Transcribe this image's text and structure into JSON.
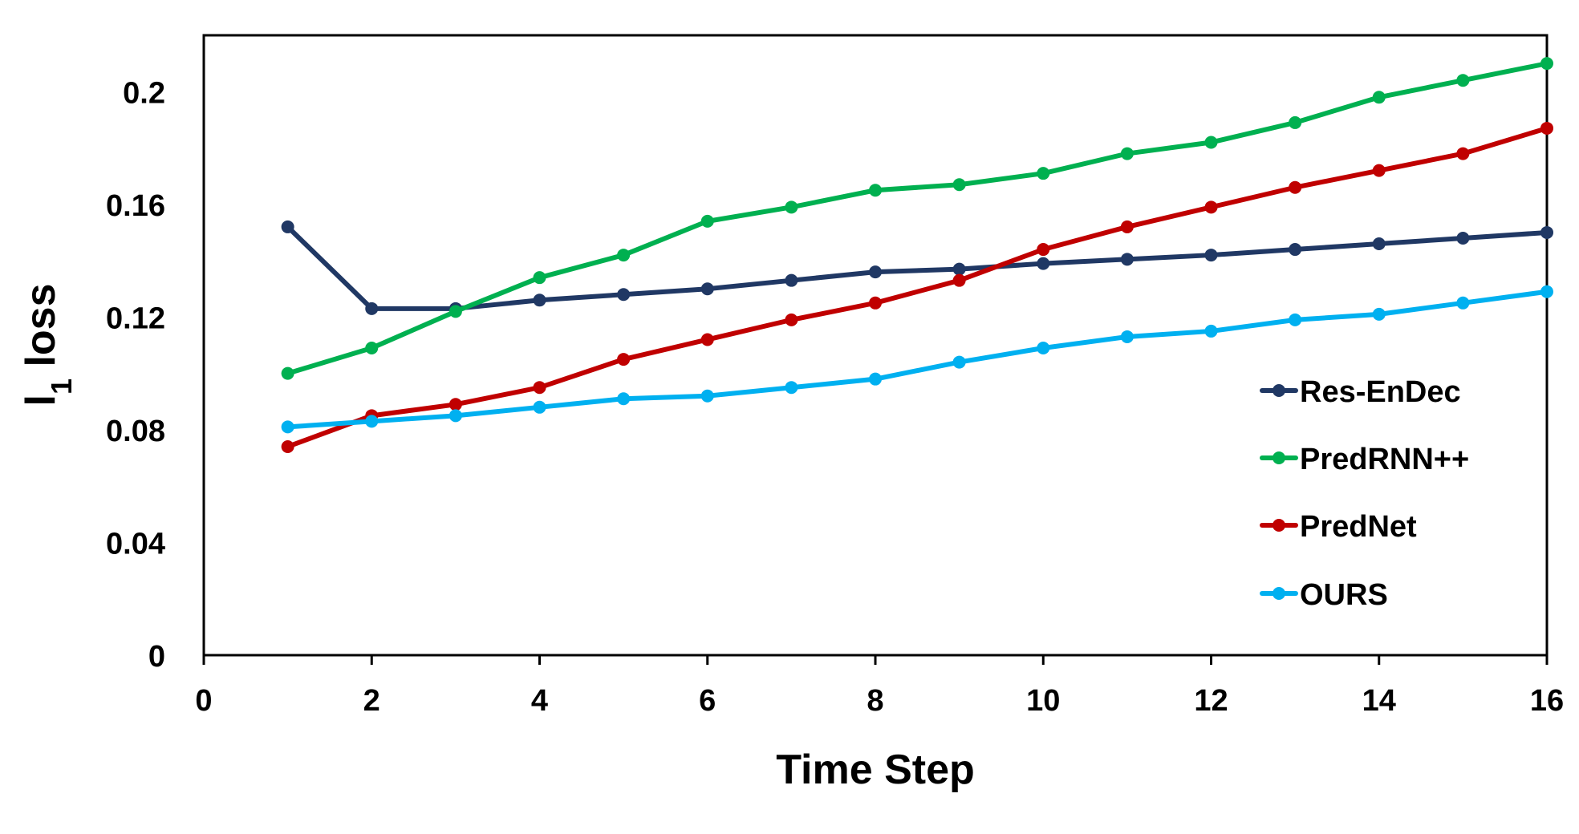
{
  "chart_data": {
    "type": "line",
    "title": "",
    "xlabel": "Time Step",
    "ylabel_main": "l",
    "ylabel_sub": "1",
    "ylabel_rest": " loss",
    "xlim": [
      0,
      16
    ],
    "ylim": [
      0,
      0.22
    ],
    "xticks": [
      0,
      2,
      4,
      6,
      8,
      10,
      12,
      14,
      16
    ],
    "yticks": [
      0,
      0.04,
      0.08,
      0.12,
      0.16,
      0.2
    ],
    "ytick_labels": [
      "0",
      "0.04",
      "0.08",
      "0.12",
      "0.16",
      "0.2"
    ],
    "grid": false,
    "legend_position": "right-middle",
    "x": [
      1,
      2,
      3,
      4,
      5,
      6,
      7,
      8,
      9,
      10,
      11,
      12,
      13,
      14,
      15,
      16
    ],
    "series": [
      {
        "name": "Res-EnDec",
        "color": "#203864",
        "values": [
          0.152,
          0.123,
          0.123,
          0.126,
          0.128,
          0.13,
          0.133,
          0.136,
          0.137,
          0.139,
          0.1405,
          0.142,
          0.144,
          0.146,
          0.148,
          0.15
        ]
      },
      {
        "name": "PredRNN++",
        "color": "#00B050",
        "values": [
          0.1,
          0.109,
          0.122,
          0.134,
          0.142,
          0.154,
          0.159,
          0.165,
          0.167,
          0.171,
          0.178,
          0.182,
          0.189,
          0.198,
          0.204,
          0.21
        ]
      },
      {
        "name": "PredNet",
        "color": "#C00000",
        "values": [
          0.074,
          0.085,
          0.089,
          0.095,
          0.105,
          0.112,
          0.119,
          0.125,
          0.133,
          0.144,
          0.152,
          0.159,
          0.166,
          0.172,
          0.178,
          0.187
        ]
      },
      {
        "name": "OURS",
        "color": "#00B0F0",
        "values": [
          0.081,
          0.083,
          0.085,
          0.088,
          0.091,
          0.092,
          0.095,
          0.098,
          0.104,
          0.109,
          0.113,
          0.115,
          0.119,
          0.121,
          0.125,
          0.129
        ]
      }
    ]
  }
}
